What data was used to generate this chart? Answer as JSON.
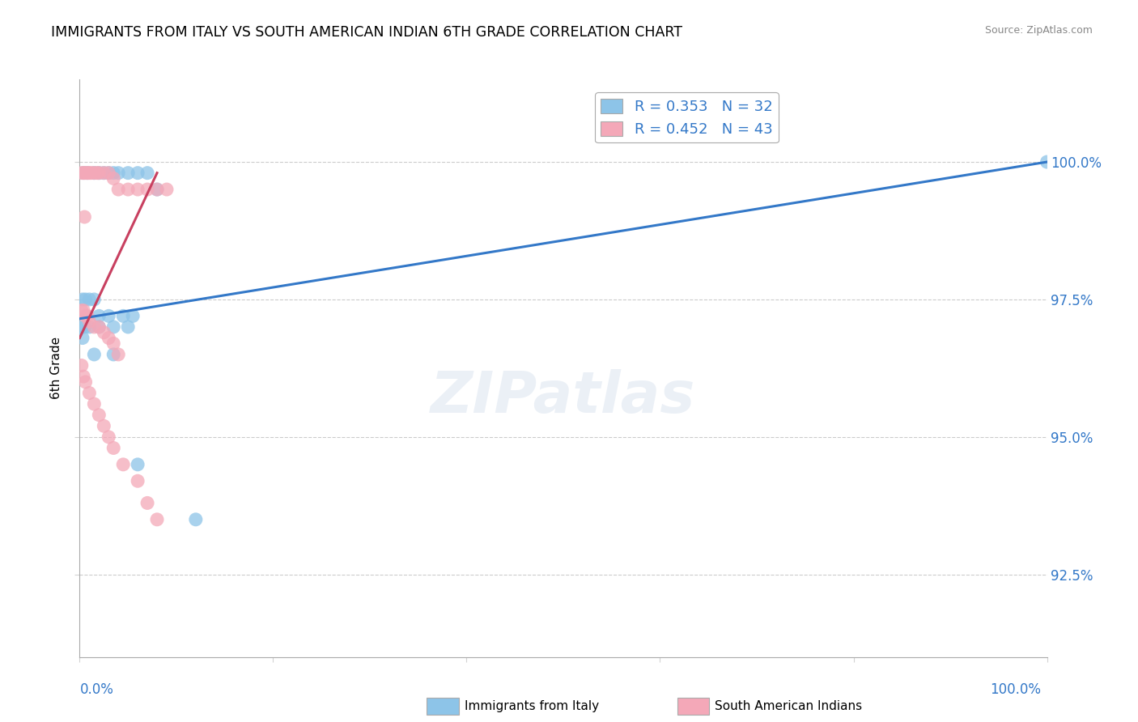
{
  "title": "IMMIGRANTS FROM ITALY VS SOUTH AMERICAN INDIAN 6TH GRADE CORRELATION CHART",
  "source": "Source: ZipAtlas.com",
  "ylabel": "6th Grade",
  "yaxis_values": [
    92.5,
    95.0,
    97.5,
    100.0
  ],
  "xaxis_range": [
    0.0,
    100.0
  ],
  "yaxis_range": [
    91.0,
    101.5
  ],
  "legend_r1": "R = 0.353",
  "legend_n1": "N = 32",
  "legend_r2": "R = 0.452",
  "legend_n2": "N = 43",
  "legend_label1": "Immigrants from Italy",
  "legend_label2": "South American Indians",
  "color_blue": "#8dc4e8",
  "color_pink": "#f4a8b8",
  "color_blue_line": "#3378c8",
  "color_pink_line": "#c84060",
  "blue_scatter_x": [
    0.4,
    0.8,
    1.5,
    2.0,
    2.5,
    3.0,
    3.5,
    4.0,
    5.0,
    6.0,
    7.0,
    8.0,
    0.3,
    0.6,
    1.0,
    1.5,
    2.0,
    3.0,
    4.5,
    5.5,
    0.2,
    0.5,
    1.0,
    2.0,
    3.5,
    5.0,
    0.3,
    1.5,
    3.5,
    6.0,
    12.0,
    100.0
  ],
  "blue_scatter_y": [
    99.8,
    99.8,
    99.8,
    99.8,
    99.8,
    99.8,
    99.8,
    99.8,
    99.8,
    99.8,
    99.8,
    99.5,
    97.5,
    97.5,
    97.5,
    97.5,
    97.2,
    97.2,
    97.2,
    97.2,
    97.0,
    97.0,
    97.0,
    97.0,
    97.0,
    97.0,
    96.8,
    96.5,
    96.5,
    94.5,
    93.5,
    100.0
  ],
  "pink_scatter_x": [
    0.2,
    0.4,
    0.6,
    0.8,
    1.0,
    1.2,
    1.5,
    1.8,
    2.0,
    2.5,
    3.0,
    3.5,
    4.0,
    5.0,
    6.0,
    7.0,
    8.0,
    9.0,
    0.2,
    0.4,
    0.6,
    0.8,
    1.0,
    1.5,
    2.0,
    2.5,
    3.0,
    3.5,
    4.0,
    0.2,
    0.4,
    0.6,
    1.0,
    1.5,
    2.0,
    2.5,
    3.0,
    3.5,
    4.5,
    6.0,
    7.0,
    8.0,
    0.5
  ],
  "pink_scatter_y": [
    99.8,
    99.8,
    99.8,
    99.8,
    99.8,
    99.8,
    99.8,
    99.8,
    99.8,
    99.8,
    99.8,
    99.7,
    99.5,
    99.5,
    99.5,
    99.5,
    99.5,
    99.5,
    97.3,
    97.3,
    97.2,
    97.2,
    97.1,
    97.0,
    97.0,
    96.9,
    96.8,
    96.7,
    96.5,
    96.3,
    96.1,
    96.0,
    95.8,
    95.6,
    95.4,
    95.2,
    95.0,
    94.8,
    94.5,
    94.2,
    93.8,
    93.5,
    99.0
  ],
  "blue_line_x": [
    0,
    100
  ],
  "blue_line_y": [
    97.15,
    100.0
  ],
  "pink_line_x": [
    0,
    8
  ],
  "pink_line_y": [
    96.8,
    99.8
  ]
}
